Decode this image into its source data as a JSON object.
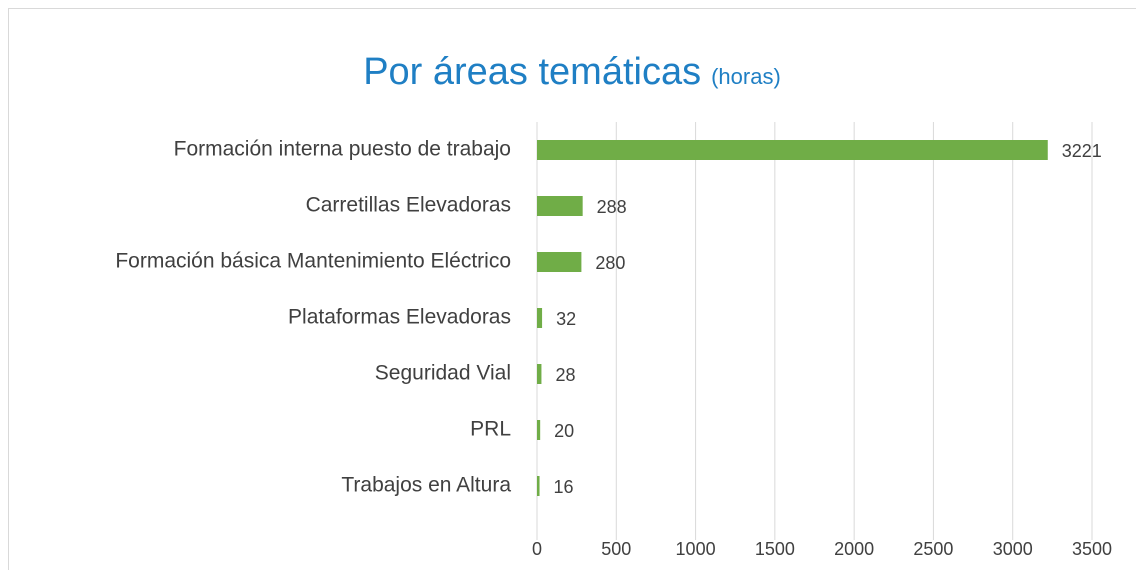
{
  "chart_data": {
    "type": "bar",
    "orientation": "horizontal",
    "title": "Por áreas temáticas",
    "subtitle": "(horas)",
    "categories": [
      "Formación interna puesto de trabajo",
      "Carretillas Elevadoras",
      "Formación básica Mantenimiento Eléctrico",
      "Plataformas Elevadoras",
      "Seguridad Vial",
      "PRL",
      "Trabajos en Altura"
    ],
    "values": [
      3221,
      288,
      280,
      32,
      28,
      20,
      16
    ],
    "color": "#70ad47",
    "xlim": [
      0,
      3500
    ],
    "xticks": [
      0,
      500,
      1000,
      1500,
      2000,
      2500,
      3000,
      3500
    ],
    "grid": true
  }
}
